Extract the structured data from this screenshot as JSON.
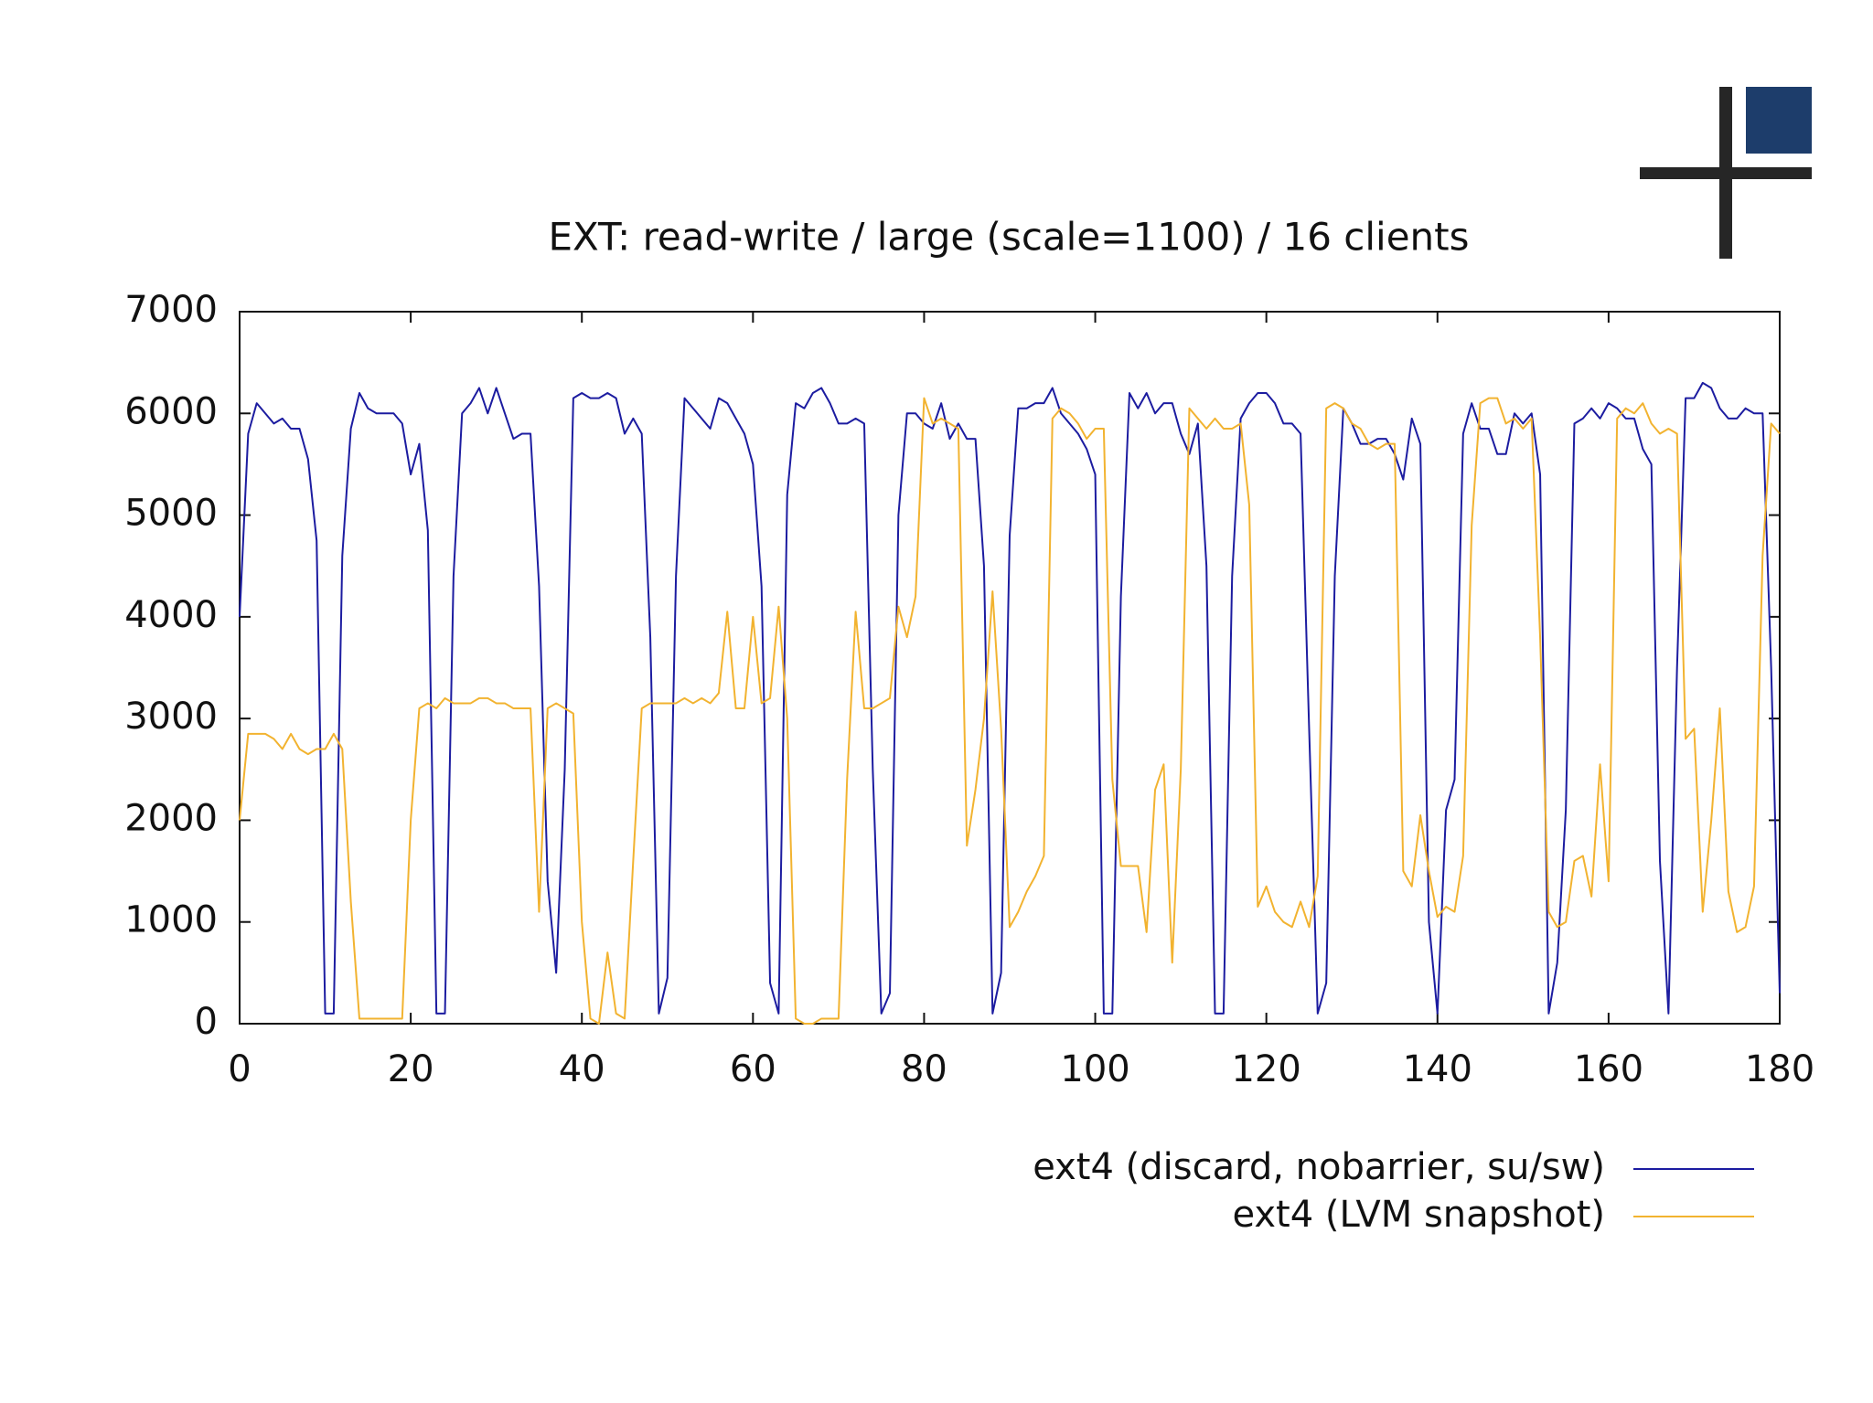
{
  "chart_data": {
    "type": "line",
    "title": "EXT: read-write / large (scale=1100) / 16 clients",
    "x": [
      0,
      1,
      2,
      3,
      4,
      5,
      6,
      7,
      8,
      9,
      10,
      11,
      12,
      13,
      14,
      15,
      16,
      17,
      18,
      19,
      20,
      21,
      22,
      23,
      24,
      25,
      26,
      27,
      28,
      29,
      30,
      31,
      32,
      33,
      34,
      35,
      36,
      37,
      38,
      39,
      40,
      41,
      42,
      43,
      44,
      45,
      46,
      47,
      48,
      49,
      50,
      51,
      52,
      53,
      54,
      55,
      56,
      57,
      58,
      59,
      60,
      61,
      62,
      63,
      64,
      65,
      66,
      67,
      68,
      69,
      70,
      71,
      72,
      73,
      74,
      75,
      76,
      77,
      78,
      79,
      80,
      81,
      82,
      83,
      84,
      85,
      86,
      87,
      88,
      89,
      90,
      91,
      92,
      93,
      94,
      95,
      96,
      97,
      98,
      99,
      100,
      101,
      102,
      103,
      104,
      105,
      106,
      107,
      108,
      109,
      110,
      111,
      112,
      113,
      114,
      115,
      116,
      117,
      118,
      119,
      120,
      121,
      122,
      123,
      124,
      125,
      126,
      127,
      128,
      129,
      130,
      131,
      132,
      133,
      134,
      135,
      136,
      137,
      138,
      139,
      140,
      141,
      142,
      143,
      144,
      145,
      146,
      147,
      148,
      149,
      150,
      151,
      152,
      153,
      154,
      155,
      156,
      157,
      158,
      159,
      160,
      161,
      162,
      163,
      164,
      165,
      166,
      167,
      168,
      169,
      170,
      171,
      172,
      173,
      174,
      175,
      176,
      177,
      178,
      179,
      180
    ],
    "series": [
      {
        "name": "ext4 (discard, nobarrier, su/sw)",
        "color": "#1c1ca0",
        "values": [
          4000,
          5800,
          6100,
          6000,
          5900,
          5950,
          5850,
          5850,
          5550,
          4750,
          100,
          100,
          4600,
          5850,
          6200,
          6050,
          6000,
          6000,
          6000,
          5900,
          5400,
          5700,
          4850,
          100,
          100,
          4400,
          6000,
          6100,
          6250,
          6000,
          6250,
          6000,
          5750,
          5800,
          5800,
          4300,
          1400,
          500,
          2500,
          6150,
          6200,
          6150,
          6150,
          6200,
          6150,
          5800,
          5950,
          5800,
          3800,
          100,
          450,
          4400,
          6150,
          6050,
          5950,
          5850,
          6150,
          6100,
          5950,
          5800,
          5500,
          4300,
          400,
          100,
          5200,
          6100,
          6050,
          6200,
          6250,
          6100,
          5900,
          5900,
          5950,
          5900,
          2500,
          100,
          300,
          5000,
          6000,
          6000,
          5900,
          5850,
          6100,
          5750,
          5900,
          5750,
          5750,
          4500,
          100,
          500,
          4800,
          6050,
          6050,
          6100,
          6100,
          6250,
          6000,
          5900,
          5800,
          5650,
          5400,
          100,
          100,
          4200,
          6200,
          6050,
          6200,
          6000,
          6100,
          6100,
          5800,
          5600,
          5900,
          4500,
          100,
          100,
          4400,
          5950,
          6100,
          6200,
          6200,
          6100,
          5900,
          5900,
          5800,
          2900,
          100,
          400,
          4400,
          6050,
          5900,
          5700,
          5700,
          5750,
          5750,
          5600,
          5350,
          5950,
          5700,
          1000,
          100,
          2100,
          2400,
          5800,
          6100,
          5850,
          5850,
          5600,
          5600,
          6000,
          5900,
          6000,
          5400,
          100,
          600,
          2100,
          5900,
          5950,
          6050,
          5950,
          6100,
          6050,
          5950,
          5950,
          5650,
          5500,
          1600,
          100,
          3500,
          6150,
          6150,
          6300,
          6250,
          6050,
          5950,
          5950,
          6050,
          6000,
          6000,
          3500,
          300
        ]
      },
      {
        "name": "ext4 (LVM snapshot)",
        "color": "#f2b330",
        "values": [
          2000,
          2850,
          2850,
          2850,
          2800,
          2700,
          2850,
          2700,
          2650,
          2700,
          2700,
          2850,
          2700,
          1200,
          50,
          50,
          50,
          50,
          50,
          50,
          2000,
          3100,
          3150,
          3100,
          3200,
          3150,
          3150,
          3150,
          3200,
          3200,
          3150,
          3150,
          3100,
          3100,
          3100,
          1100,
          3100,
          3150,
          3100,
          3050,
          1000,
          50,
          0,
          700,
          100,
          50,
          1600,
          3100,
          3150,
          3150,
          3150,
          3150,
          3200,
          3150,
          3200,
          3150,
          3250,
          4050,
          3100,
          3100,
          4000,
          3150,
          3200,
          4100,
          3000,
          50,
          0,
          0,
          50,
          50,
          50,
          2400,
          4050,
          3100,
          3100,
          3150,
          3200,
          4100,
          3800,
          4200,
          6150,
          5900,
          5950,
          5900,
          5850,
          1750,
          2300,
          3000,
          4250,
          2900,
          950,
          1100,
          1300,
          1450,
          1650,
          5950,
          6050,
          6000,
          5900,
          5750,
          5850,
          5850,
          2400,
          1550,
          1550,
          1550,
          900,
          2300,
          2550,
          600,
          2500,
          6050,
          5950,
          5850,
          5950,
          5850,
          5850,
          5900,
          5100,
          1150,
          1350,
          1100,
          1000,
          950,
          1200,
          950,
          1450,
          6050,
          6100,
          6050,
          5900,
          5850,
          5700,
          5650,
          5700,
          5700,
          1500,
          1350,
          2050,
          1500,
          1050,
          1150,
          1100,
          1650,
          4900,
          6100,
          6150,
          6150,
          5900,
          5950,
          5850,
          5950,
          3800,
          1100,
          950,
          1000,
          1600,
          1650,
          1250,
          2550,
          1400,
          5950,
          6050,
          6000,
          6100,
          5900,
          5800,
          5850,
          5800,
          2800,
          2900,
          1100,
          2000,
          3100,
          1300,
          900,
          950,
          1350,
          4600,
          5900,
          5800
        ]
      }
    ],
    "xlim": [
      0,
      180
    ],
    "xticks": [
      0,
      20,
      40,
      60,
      80,
      100,
      120,
      140,
      160,
      180
    ],
    "ylim": [
      0,
      7000
    ],
    "yticks": [
      0,
      1000,
      2000,
      3000,
      4000,
      5000,
      6000,
      7000
    ],
    "grid": false,
    "legend": "bottom-right"
  }
}
